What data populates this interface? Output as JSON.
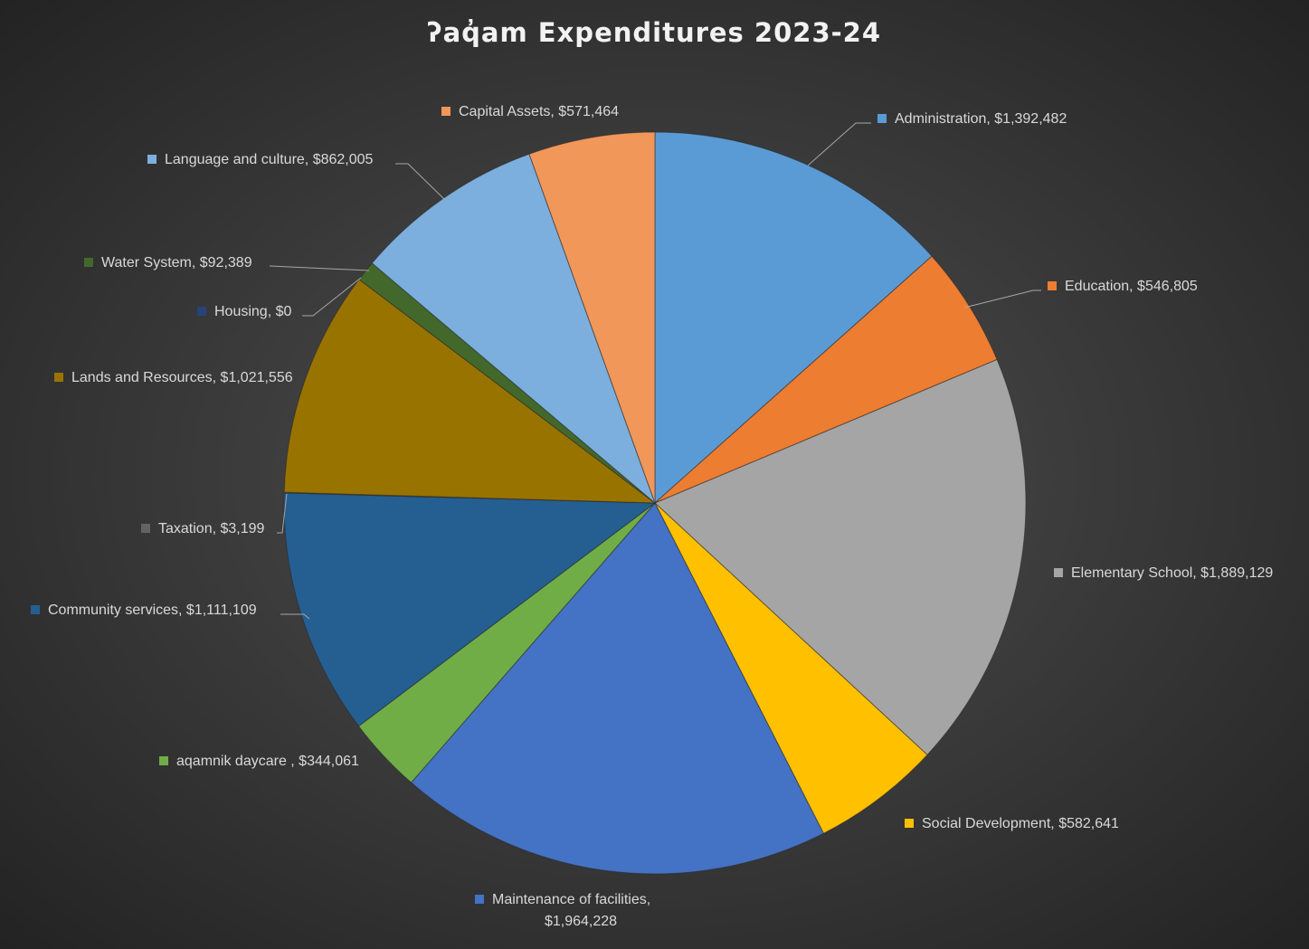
{
  "chart_data": {
    "type": "pie",
    "title": "ʔaq̓am Expenditures 2023-24",
    "slices": [
      {
        "label": "Administration, $1,392,482",
        "value": 1392482,
        "color": "#5b9bd5"
      },
      {
        "label": "Education, $546,805",
        "value": 546805,
        "color": "#ed7d31"
      },
      {
        "label": "Elementary School, $1,889,129",
        "value": 1889129,
        "color": "#a5a5a5"
      },
      {
        "label": "Social Development, $582,641",
        "value": 582641,
        "color": "#ffc000"
      },
      {
        "label": "Maintenance of facilities, $1,964,228",
        "value": 1964228,
        "color": "#4472c4"
      },
      {
        "label": "aqamnik daycare , $344,061",
        "value": 344061,
        "color": "#70ad47"
      },
      {
        "label": "Community services, $1,111,109",
        "value": 1111109,
        "color": "#255e91"
      },
      {
        "label": "Taxation, $3,199",
        "value": 3199,
        "color": "#636363"
      },
      {
        "label": "Lands and Resources, $1,021,556",
        "value": 1021556,
        "color": "#997300"
      },
      {
        "label": "Housing, $0",
        "value": 0,
        "color": "#264478"
      },
      {
        "label": "Water System, $92,389",
        "value": 92389,
        "color": "#43682b"
      },
      {
        "label": "Language and culture, $862,005",
        "value": 862005,
        "color": "#7cafdd"
      },
      {
        "label": "Capital Assets, $571,464",
        "value": 571464,
        "color": "#f1975a"
      }
    ]
  }
}
